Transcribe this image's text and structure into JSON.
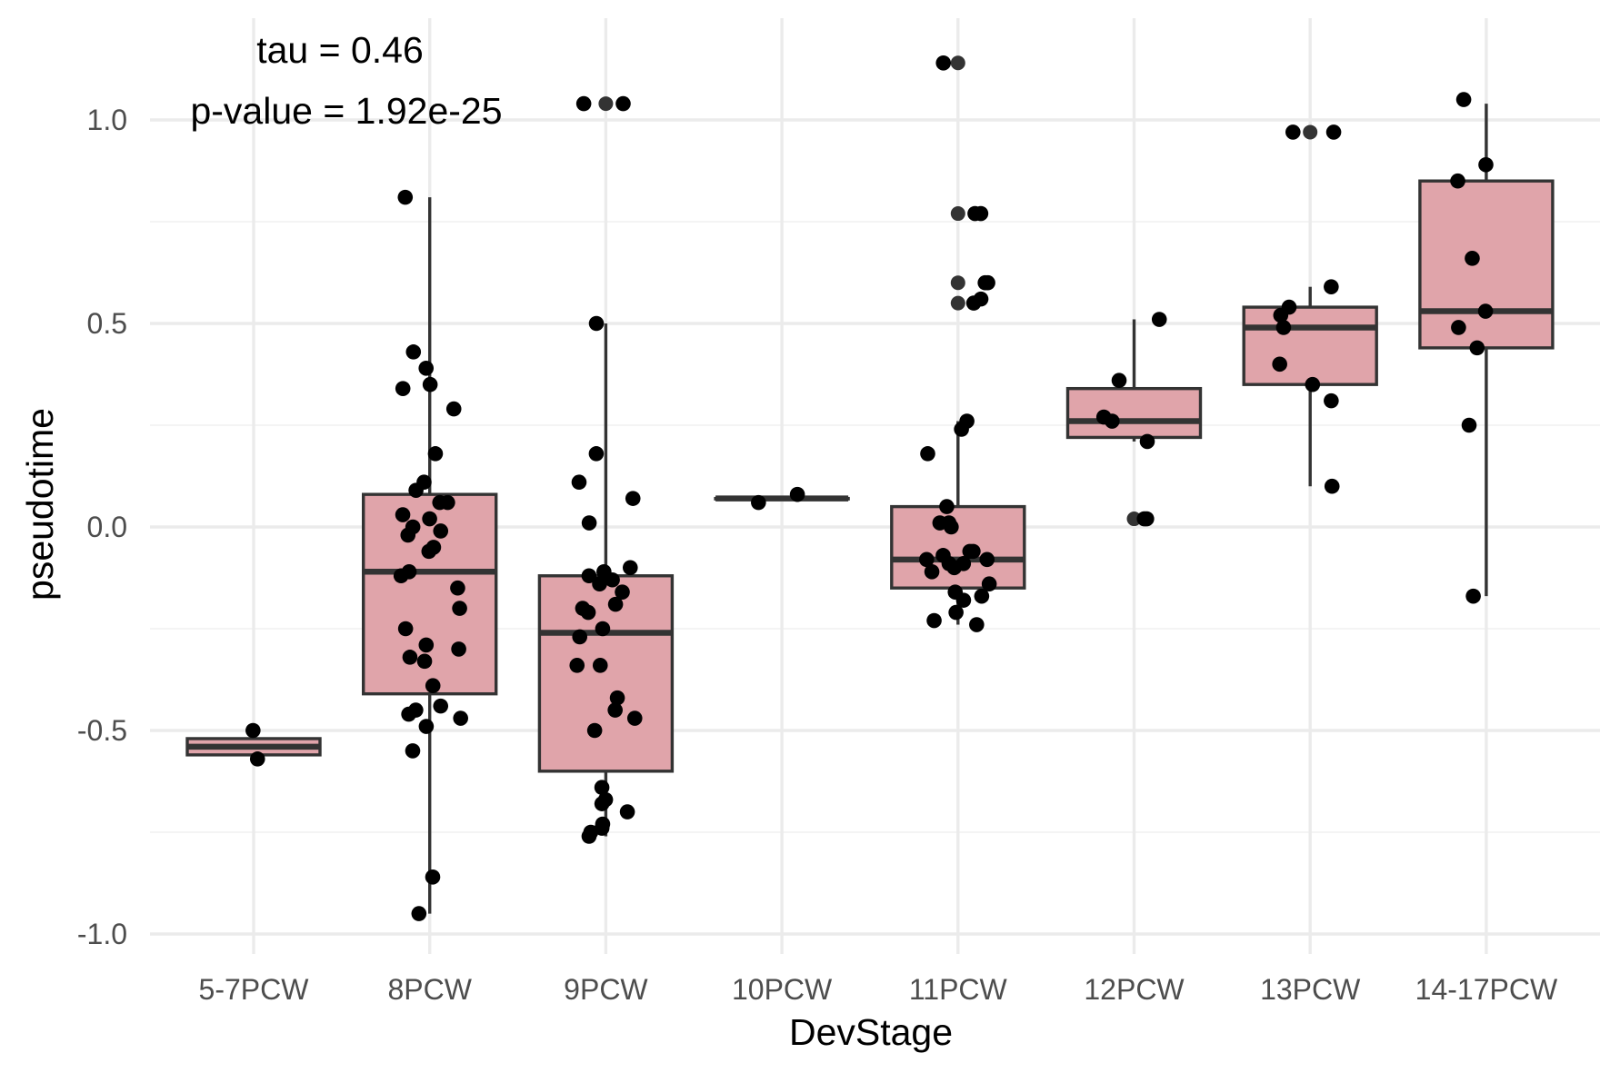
{
  "chart_data": {
    "type": "box",
    "xlabel": "DevStage",
    "ylabel": "pseudotime",
    "categories": [
      "5-7PCW",
      "8PCW",
      "9PCW",
      "10PCW",
      "11PCW",
      "12PCW",
      "13PCW",
      "14-17PCW"
    ],
    "yticks": [
      "-1.0",
      "-0.5",
      "0.0",
      "0.5",
      "1.0"
    ],
    "ylim": [
      -1.05,
      1.25
    ],
    "grid": true,
    "legend": "none",
    "annotations": {
      "tau": "tau = 0.46",
      "pvalue": "p-value = 1.92e-25"
    },
    "colors": {
      "box_fill": "#e0a4aa",
      "box_stroke": "#333333",
      "points": "#000000"
    },
    "boxes": [
      {
        "category": "5-7PCW",
        "lower_whisker": -0.57,
        "q1": -0.56,
        "median": -0.54,
        "q3": -0.52,
        "upper_whisker": -0.51,
        "outliers": []
      },
      {
        "category": "8PCW",
        "lower_whisker": -0.95,
        "q1": -0.41,
        "median": -0.11,
        "q3": 0.08,
        "upper_whisker": 0.81,
        "outliers": []
      },
      {
        "category": "9PCW",
        "lower_whisker": -0.76,
        "q1": -0.6,
        "median": -0.26,
        "q3": -0.12,
        "upper_whisker": 0.5,
        "outliers": [
          1.04
        ]
      },
      {
        "category": "10PCW",
        "lower_whisker": 0.07,
        "q1": 0.07,
        "median": 0.07,
        "q3": 0.07,
        "upper_whisker": 0.07,
        "outliers": []
      },
      {
        "category": "11PCW",
        "lower_whisker": -0.24,
        "q1": -0.15,
        "median": -0.08,
        "q3": 0.05,
        "upper_whisker": 0.26,
        "outliers": [
          0.55,
          0.6,
          0.77,
          1.14
        ]
      },
      {
        "category": "12PCW",
        "lower_whisker": 0.21,
        "q1": 0.22,
        "median": 0.26,
        "q3": 0.34,
        "upper_whisker": 0.51,
        "outliers": [
          0.02
        ]
      },
      {
        "category": "13PCW",
        "lower_whisker": 0.1,
        "q1": 0.35,
        "median": 0.49,
        "q3": 0.54,
        "upper_whisker": 0.59,
        "outliers": [
          0.97
        ]
      },
      {
        "category": "14-17PCW",
        "lower_whisker": -0.17,
        "q1": 0.44,
        "median": 0.53,
        "q3": 0.85,
        "upper_whisker": 1.04,
        "outliers": []
      }
    ],
    "points": [
      {
        "category": "5-7PCW",
        "values": [
          -0.5,
          -0.57
        ]
      },
      {
        "category": "8PCW",
        "values": [
          0.81,
          0.43,
          0.39,
          0.35,
          0.34,
          0.29,
          0.18,
          0.11,
          0.09,
          0.06,
          0.06,
          0.03,
          0.02,
          0.0,
          -0.01,
          -0.02,
          -0.05,
          -0.06,
          -0.11,
          -0.12,
          -0.15,
          -0.2,
          -0.25,
          -0.29,
          -0.3,
          -0.32,
          -0.33,
          -0.39,
          -0.44,
          -0.45,
          -0.46,
          -0.47,
          -0.49,
          -0.55,
          -0.86,
          -0.95
        ]
      },
      {
        "category": "9PCW",
        "values": [
          1.04,
          1.04,
          0.5,
          0.18,
          0.11,
          0.07,
          0.01,
          -0.1,
          -0.11,
          -0.12,
          -0.13,
          -0.14,
          -0.16,
          -0.19,
          -0.2,
          -0.21,
          -0.25,
          -0.27,
          -0.34,
          -0.34,
          -0.42,
          -0.45,
          -0.47,
          -0.5,
          -0.64,
          -0.67,
          -0.68,
          -0.7,
          -0.73,
          -0.74,
          -0.75,
          -0.76
        ]
      },
      {
        "category": "10PCW",
        "values": [
          0.08,
          0.06
        ]
      },
      {
        "category": "11PCW",
        "values": [
          1.14,
          0.77,
          0.77,
          0.6,
          0.6,
          0.56,
          0.55,
          0.26,
          0.24,
          0.18,
          0.05,
          0.01,
          0.01,
          0.0,
          -0.06,
          -0.06,
          -0.07,
          -0.08,
          -0.08,
          -0.09,
          -0.09,
          -0.1,
          -0.11,
          -0.14,
          -0.16,
          -0.17,
          -0.18,
          -0.21,
          -0.23,
          -0.24
        ]
      },
      {
        "category": "12PCW",
        "values": [
          0.51,
          0.36,
          0.27,
          0.26,
          0.21,
          0.02,
          0.02
        ]
      },
      {
        "category": "13PCW",
        "values": [
          0.97,
          0.97,
          0.59,
          0.54,
          0.52,
          0.49,
          0.4,
          0.35,
          0.31,
          0.1
        ]
      },
      {
        "category": "14-17PCW",
        "values": [
          1.05,
          0.89,
          0.85,
          0.66,
          0.53,
          0.49,
          0.44,
          0.25,
          -0.17
        ]
      }
    ]
  }
}
